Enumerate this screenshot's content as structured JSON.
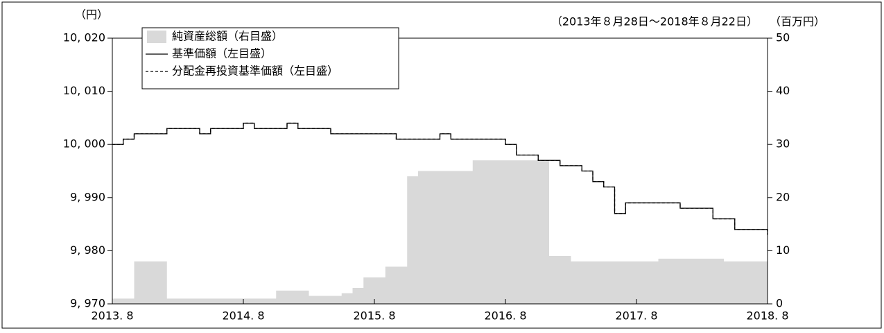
{
  "chart_data": {
    "type": "line",
    "range_note": "（2013年８月28日～2018年８月22日）",
    "ylabel": "（円）",
    "y2label": "（百万円）",
    "x": [
      "2013-08",
      "2013-09",
      "2013-10",
      "2013-11",
      "2013-12",
      "2014-01",
      "2014-02",
      "2014-03",
      "2014-04",
      "2014-05",
      "2014-06",
      "2014-07",
      "2014-08",
      "2014-09",
      "2014-10",
      "2014-11",
      "2014-12",
      "2015-01",
      "2015-02",
      "2015-03",
      "2015-04",
      "2015-05",
      "2015-06",
      "2015-07",
      "2015-08",
      "2015-09",
      "2015-10",
      "2015-11",
      "2015-12",
      "2016-01",
      "2016-02",
      "2016-03",
      "2016-04",
      "2016-05",
      "2016-06",
      "2016-07",
      "2016-08",
      "2016-09",
      "2016-10",
      "2016-11",
      "2016-12",
      "2017-01",
      "2017-02",
      "2017-03",
      "2017-04",
      "2017-05",
      "2017-06",
      "2017-07",
      "2017-08",
      "2017-09",
      "2017-10",
      "2017-11",
      "2017-12",
      "2018-01",
      "2018-02",
      "2018-03",
      "2018-04",
      "2018-05",
      "2018-06",
      "2018-07",
      "2018-08"
    ],
    "xlim": [
      "2013-08",
      "2018-08"
    ],
    "xticks": [
      {
        "value": "2013-08",
        "label": "2013. 8"
      },
      {
        "value": "2014-08",
        "label": "2014. 8"
      },
      {
        "value": "2015-08",
        "label": "2015. 8"
      },
      {
        "value": "2016-08",
        "label": "2016. 8"
      },
      {
        "value": "2017-08",
        "label": "2017. 8"
      },
      {
        "value": "2018-08",
        "label": "2018. 8"
      }
    ],
    "ylim": [
      9970,
      10020
    ],
    "yticks": [
      {
        "value": 9970,
        "label": "9, 970"
      },
      {
        "value": 9980,
        "label": "9, 980"
      },
      {
        "value": 9990,
        "label": "9, 990"
      },
      {
        "value": 10000,
        "label": "10, 000"
      },
      {
        "value": 10010,
        "label": "10, 010"
      },
      {
        "value": 10020,
        "label": "10, 020"
      }
    ],
    "y2lim": [
      0,
      50
    ],
    "y2ticks": [
      0,
      10,
      20,
      30,
      40,
      50
    ],
    "series": [
      {
        "name": "純資産総額（右目盛）",
        "type": "area",
        "axis": "y2",
        "color": "#d9d9d9",
        "values": [
          1,
          1,
          8,
          8,
          8,
          1,
          1,
          1,
          1,
          1,
          1,
          1,
          1,
          1,
          1,
          2.5,
          2.5,
          2.5,
          1.5,
          1.5,
          1.5,
          2,
          3,
          5,
          5,
          7,
          7,
          24,
          25,
          25,
          25,
          25,
          25,
          27,
          27,
          27,
          27,
          27,
          27,
          27,
          9,
          9,
          8,
          8,
          8,
          8,
          8,
          8,
          8,
          8,
          8.5,
          8.5,
          8.5,
          8.5,
          8.5,
          8.5,
          8,
          8,
          8,
          8,
          8
        ]
      },
      {
        "name": "基準価額（左目盛）",
        "type": "line",
        "color": "#000000",
        "dash": "none",
        "values": [
          10000,
          10001,
          10002,
          10002,
          10002,
          10003,
          10003,
          10003,
          10002,
          10003,
          10003,
          10003,
          10004,
          10003,
          10003,
          10003,
          10004,
          10003,
          10003,
          10003,
          10002,
          10002,
          10002,
          10002,
          10002,
          10002,
          10001,
          10001,
          10001,
          10001,
          10002,
          10001,
          10001,
          10001,
          10001,
          10001,
          10000,
          9998,
          9998,
          9997,
          9997,
          9996,
          9996,
          9995,
          9993,
          9992,
          9987,
          9989,
          9989,
          9989,
          9989,
          9989,
          9988,
          9988,
          9988,
          9986,
          9986,
          9984,
          9984,
          9984,
          9983
        ]
      },
      {
        "name": "分配金再投資基準価額（左目盛）",
        "type": "line",
        "color": "#000000",
        "dash": "4 3",
        "values": [
          10000,
          10001,
          10002,
          10002,
          10002,
          10003,
          10003,
          10003,
          10002,
          10003,
          10003,
          10003,
          10004,
          10003,
          10003,
          10003,
          10004,
          10003,
          10003,
          10003,
          10002,
          10002,
          10002,
          10002,
          10002,
          10002,
          10001,
          10001,
          10001,
          10001,
          10002,
          10001,
          10001,
          10001,
          10001,
          10001,
          10000,
          9998,
          9998,
          9997,
          9997,
          9996,
          9996,
          9995,
          9993,
          9992,
          9987,
          9989,
          9989,
          9989,
          9989,
          9989,
          9988,
          9988,
          9988,
          9986,
          9986,
          9984,
          9984,
          9984,
          9983
        ]
      }
    ]
  }
}
